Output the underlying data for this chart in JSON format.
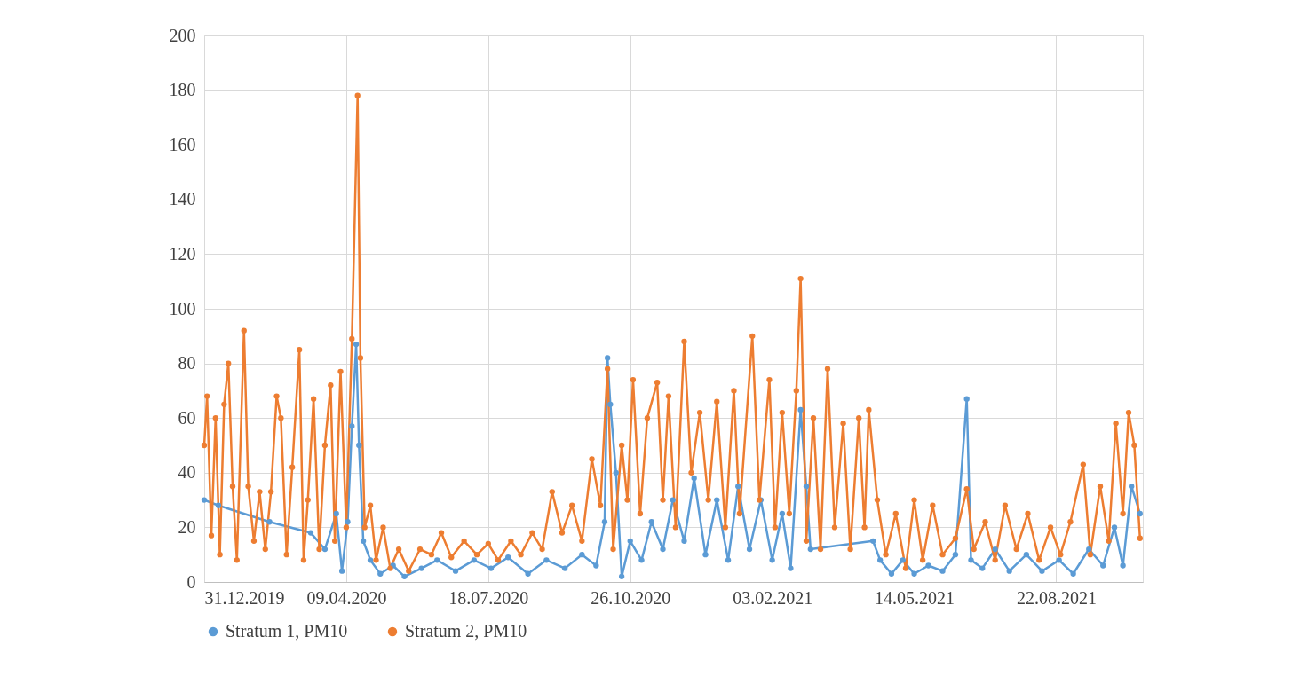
{
  "chart_data": {
    "type": "line",
    "marker": "circle",
    "grid": true,
    "legend": "bottom",
    "xlim": [
      "2019-12-31",
      "2021-10-22"
    ],
    "xticks": [
      {
        "value": "2019-12-31",
        "label": "31.12.2019"
      },
      {
        "value": "2020-04-09",
        "label": "09.04.2020"
      },
      {
        "value": "2020-07-18",
        "label": "18.07.2020"
      },
      {
        "value": "2020-10-26",
        "label": "26.10.2020"
      },
      {
        "value": "2021-02-03",
        "label": "03.02.2021"
      },
      {
        "value": "2021-05-14",
        "label": "14.05.2021"
      },
      {
        "value": "2021-08-22",
        "label": "22.08.2021"
      }
    ],
    "ylim": [
      0,
      200
    ],
    "yticks": [
      0,
      20,
      40,
      60,
      80,
      100,
      120,
      140,
      160,
      180,
      200
    ],
    "series": [
      {
        "name": "Stratum 1, PM10",
        "color": "#5b9bd5",
        "x": [
          "2019-12-31",
          "2020-01-10",
          "2020-02-15",
          "2020-03-15",
          "2020-03-25",
          "2020-04-02",
          "2020-04-06",
          "2020-04-10",
          "2020-04-13",
          "2020-04-16",
          "2020-04-18",
          "2020-04-21",
          "2020-04-26",
          "2020-05-03",
          "2020-05-12",
          "2020-05-20",
          "2020-06-01",
          "2020-06-12",
          "2020-06-25",
          "2020-07-08",
          "2020-07-20",
          "2020-08-01",
          "2020-08-15",
          "2020-08-28",
          "2020-09-10",
          "2020-09-22",
          "2020-10-02",
          "2020-10-08",
          "2020-10-10",
          "2020-10-12",
          "2020-10-16",
          "2020-10-20",
          "2020-10-26",
          "2020-11-03",
          "2020-11-10",
          "2020-11-18",
          "2020-11-25",
          "2020-12-03",
          "2020-12-10",
          "2020-12-18",
          "2020-12-26",
          "2021-01-03",
          "2021-01-10",
          "2021-01-18",
          "2021-01-26",
          "2021-02-03",
          "2021-02-10",
          "2021-02-16",
          "2021-02-23",
          "2021-02-27",
          "2021-03-02",
          "2021-04-15",
          "2021-04-20",
          "2021-04-28",
          "2021-05-06",
          "2021-05-14",
          "2021-05-24",
          "2021-06-03",
          "2021-06-12",
          "2021-06-20",
          "2021-06-23",
          "2021-07-01",
          "2021-07-10",
          "2021-07-20",
          "2021-08-01",
          "2021-08-12",
          "2021-08-24",
          "2021-09-03",
          "2021-09-14",
          "2021-09-24",
          "2021-10-02",
          "2021-10-08",
          "2021-10-14",
          "2021-10-20"
        ],
        "values": [
          30,
          28,
          22,
          18,
          12,
          25,
          4,
          22,
          57,
          87,
          50,
          15,
          8,
          3,
          6,
          2,
          5,
          8,
          4,
          8,
          5,
          9,
          3,
          8,
          5,
          10,
          6,
          22,
          82,
          65,
          40,
          2,
          15,
          8,
          22,
          12,
          30,
          15,
          38,
          10,
          30,
          8,
          35,
          12,
          30,
          8,
          25,
          5,
          63,
          35,
          12,
          15,
          8,
          3,
          8,
          3,
          6,
          4,
          10,
          67,
          8,
          5,
          12,
          4,
          10,
          4,
          8,
          3,
          12,
          6,
          20,
          6,
          35,
          25
        ]
      },
      {
        "name": "Stratum 2, PM10",
        "color": "#ed7d31",
        "x": [
          "2019-12-31",
          "2020-01-02",
          "2020-01-05",
          "2020-01-08",
          "2020-01-11",
          "2020-01-14",
          "2020-01-17",
          "2020-01-20",
          "2020-01-23",
          "2020-01-28",
          "2020-01-31",
          "2020-02-04",
          "2020-02-08",
          "2020-02-12",
          "2020-02-16",
          "2020-02-20",
          "2020-02-23",
          "2020-02-27",
          "2020-03-02",
          "2020-03-07",
          "2020-03-10",
          "2020-03-13",
          "2020-03-17",
          "2020-03-21",
          "2020-03-25",
          "2020-03-29",
          "2020-04-01",
          "2020-04-05",
          "2020-04-09",
          "2020-04-13",
          "2020-04-17",
          "2020-04-19",
          "2020-04-22",
          "2020-04-26",
          "2020-04-30",
          "2020-05-05",
          "2020-05-10",
          "2020-05-16",
          "2020-05-23",
          "2020-05-31",
          "2020-06-08",
          "2020-06-15",
          "2020-06-22",
          "2020-07-01",
          "2020-07-10",
          "2020-07-18",
          "2020-07-25",
          "2020-08-03",
          "2020-08-10",
          "2020-08-18",
          "2020-08-25",
          "2020-09-01",
          "2020-09-08",
          "2020-09-15",
          "2020-09-22",
          "2020-09-29",
          "2020-10-05",
          "2020-10-10",
          "2020-10-14",
          "2020-10-20",
          "2020-10-24",
          "2020-10-28",
          "2020-11-02",
          "2020-11-07",
          "2020-11-14",
          "2020-11-18",
          "2020-11-22",
          "2020-11-27",
          "2020-12-03",
          "2020-12-08",
          "2020-12-14",
          "2020-12-20",
          "2020-12-26",
          "2021-01-01",
          "2021-01-07",
          "2021-01-11",
          "2021-01-20",
          "2021-01-25",
          "2021-02-01",
          "2021-02-05",
          "2021-02-10",
          "2021-02-15",
          "2021-02-20",
          "2021-02-23",
          "2021-02-27",
          "2021-03-04",
          "2021-03-09",
          "2021-03-14",
          "2021-03-19",
          "2021-03-25",
          "2021-03-30",
          "2021-04-05",
          "2021-04-09",
          "2021-04-12",
          "2021-04-18",
          "2021-04-24",
          "2021-05-01",
          "2021-05-08",
          "2021-05-14",
          "2021-05-20",
          "2021-05-27",
          "2021-06-03",
          "2021-06-12",
          "2021-06-20",
          "2021-06-25",
          "2021-07-03",
          "2021-07-10",
          "2021-07-17",
          "2021-07-25",
          "2021-08-02",
          "2021-08-10",
          "2021-08-18",
          "2021-08-25",
          "2021-09-01",
          "2021-09-10",
          "2021-09-15",
          "2021-09-22",
          "2021-09-28",
          "2021-10-03",
          "2021-10-08",
          "2021-10-12",
          "2021-10-16",
          "2021-10-20"
        ],
        "values": [
          50,
          68,
          17,
          60,
          10,
          65,
          80,
          35,
          8,
          92,
          35,
          15,
          33,
          12,
          33,
          68,
          60,
          10,
          42,
          85,
          8,
          30,
          67,
          12,
          50,
          72,
          15,
          77,
          20,
          89,
          178,
          82,
          20,
          28,
          8,
          20,
          5,
          12,
          4,
          12,
          10,
          18,
          9,
          15,
          10,
          14,
          8,
          15,
          10,
          18,
          12,
          33,
          18,
          28,
          15,
          45,
          28,
          78,
          12,
          50,
          30,
          74,
          25,
          60,
          73,
          30,
          68,
          20,
          88,
          40,
          62,
          30,
          66,
          20,
          70,
          25,
          90,
          30,
          74,
          20,
          62,
          25,
          70,
          111,
          15,
          60,
          12,
          78,
          20,
          58,
          12,
          60,
          20,
          63,
          30,
          10,
          25,
          5,
          30,
          8,
          28,
          10,
          16,
          34,
          12,
          22,
          8,
          28,
          12,
          25,
          8,
          20,
          10,
          22,
          43,
          10,
          35,
          15,
          58,
          25,
          62,
          50,
          16
        ]
      }
    ]
  }
}
